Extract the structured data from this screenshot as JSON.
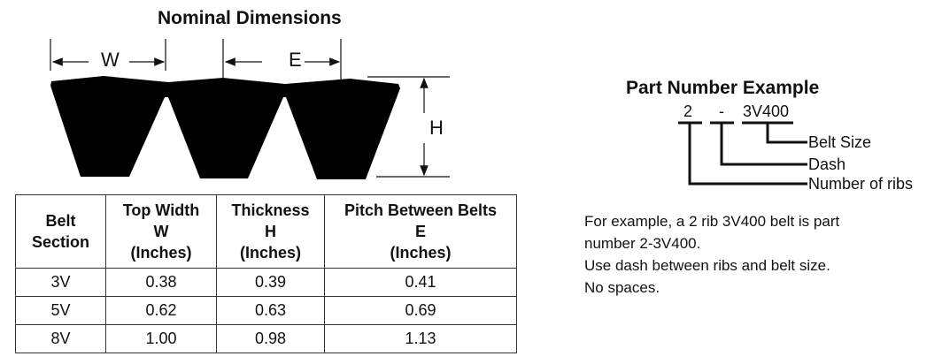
{
  "diagram": {
    "title": "Nominal Dimensions",
    "labels": {
      "w": "W",
      "e": "E",
      "h": "H"
    }
  },
  "table": {
    "headers": [
      {
        "lines": [
          "Belt",
          "Section"
        ]
      },
      {
        "lines": [
          "Top Width",
          "W",
          "(Inches)"
        ]
      },
      {
        "lines": [
          "Thickness",
          "H",
          "(Inches)"
        ]
      },
      {
        "lines": [
          "Pitch Between Belts",
          "E",
          "(Inches)"
        ]
      }
    ],
    "rows": [
      [
        "3V",
        "0.38",
        "0.39",
        "0.41"
      ],
      [
        "5V",
        "0.62",
        "0.63",
        "0.69"
      ],
      [
        "8V",
        "1.00",
        "0.98",
        "1.13"
      ]
    ]
  },
  "part_number": {
    "title": "Part Number Example",
    "ribs": "2",
    "dash": "-",
    "size": "3V400",
    "labels": {
      "size": "Belt Size",
      "dash": "Dash",
      "ribs": "Number of ribs"
    },
    "explanation": [
      "For example, a 2 rib 3V400 belt is part",
      "number 2-3V400.",
      "Use dash between ribs and belt size.",
      "No spaces."
    ]
  }
}
